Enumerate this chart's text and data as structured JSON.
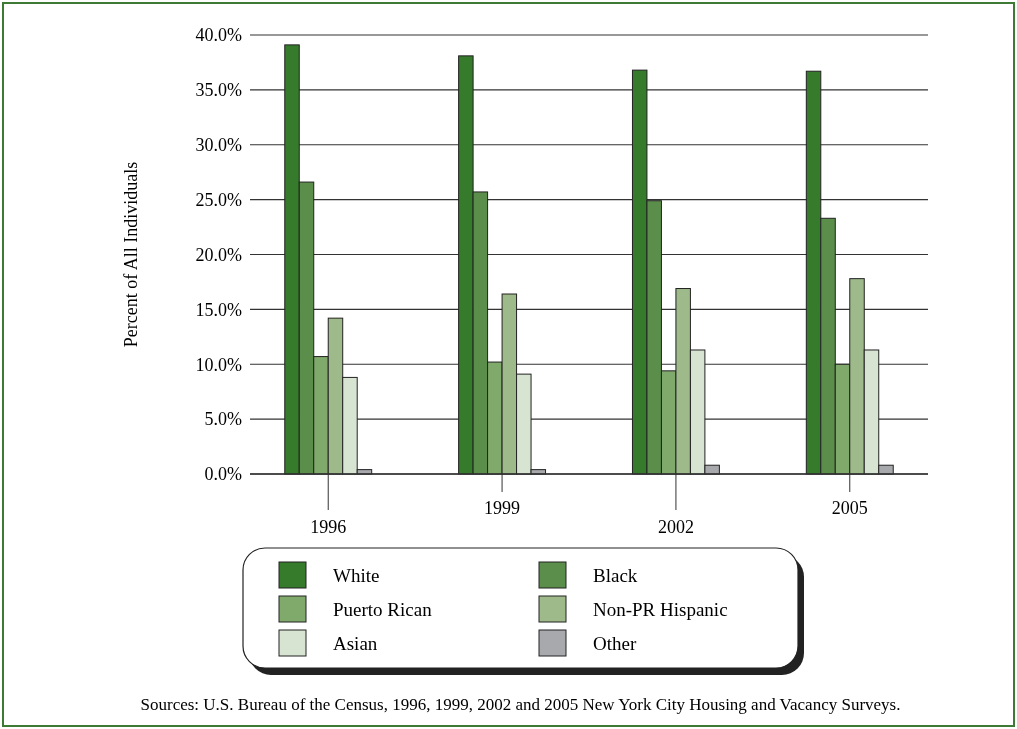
{
  "chart_data": {
    "type": "bar",
    "ylabel": "Percent of All Individuals",
    "categories": [
      "1996",
      "1999",
      "2002",
      "2005"
    ],
    "series": [
      {
        "name": "White",
        "color": "#367a2c",
        "values": [
          39.1,
          38.1,
          36.8,
          36.7
        ]
      },
      {
        "name": "Black",
        "color": "#5b8e4a",
        "values": [
          26.6,
          25.7,
          24.9,
          23.3
        ]
      },
      {
        "name": "Puerto Rican",
        "color": "#80a96c",
        "values": [
          10.7,
          10.2,
          9.4,
          10.0
        ]
      },
      {
        "name": "Non-PR Hispanic",
        "color": "#9eba8a",
        "values": [
          14.2,
          16.4,
          16.9,
          17.8
        ]
      },
      {
        "name": "Asian",
        "color": "#d8e4d2",
        "values": [
          8.8,
          9.1,
          11.3,
          11.3
        ]
      },
      {
        "name": "Other",
        "color": "#a7a9ac",
        "values": [
          0.4,
          0.4,
          0.8,
          0.8
        ]
      }
    ],
    "ylim": [
      0,
      40
    ],
    "yticks": [
      {
        "value": 0,
        "label": "0.0%"
      },
      {
        "value": 5,
        "label": "5.0%"
      },
      {
        "value": 10,
        "label": "10.0%"
      },
      {
        "value": 15,
        "label": "15.0%"
      },
      {
        "value": 20,
        "label": "20.0%"
      },
      {
        "value": 25,
        "label": "25.0%"
      },
      {
        "value": 30,
        "label": "30.0%"
      },
      {
        "value": 35,
        "label": "35.0%"
      },
      {
        "value": 40,
        "label": "40.0%"
      }
    ],
    "grid": "y",
    "legend": "bottom",
    "annotations": [
      "Sources:  U.S. Bureau of the Census, 1996, 1999, 2002 and 2005 New York City Housing and Vacancy Surveys."
    ]
  }
}
